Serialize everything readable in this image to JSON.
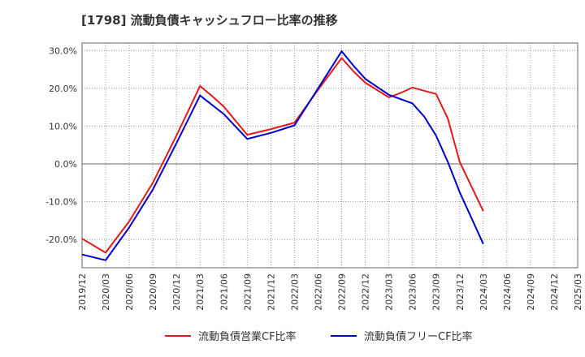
{
  "chart_data": {
    "type": "line",
    "title": "[1798]  流動負債キャッシュフロー比率の推移",
    "xlabel": "",
    "ylabel": "",
    "x": [
      "2019/12",
      "2020/03",
      "2020/06",
      "2020/09",
      "2020/12",
      "2021/03",
      "2021/06",
      "2021/09",
      "2021/12",
      "2022/03",
      "2022/06",
      "2022/09",
      "2022/12",
      "2023/03",
      "2023/06",
      "2023/09",
      "2023/12",
      "2024/03",
      "2024/06",
      "2024/09",
      "2024/12",
      "2025/03"
    ],
    "ylim": [
      -27.5,
      32.0
    ],
    "yticks": [
      30,
      20,
      10,
      0,
      -10,
      -20
    ],
    "ytick_labels": [
      "30.0%",
      "20.0%",
      "10.0%",
      "0.0%",
      "-10.0%",
      "-20.0%"
    ],
    "grid": true,
    "legend_position": "bottom",
    "series": [
      {
        "name": "流動負債営業CF比率",
        "color": "#e31a1c",
        "values": [
          [
            0,
            -19.8
          ],
          [
            1,
            -23.5
          ],
          [
            2,
            -15.2
          ],
          [
            3,
            -5.0
          ],
          [
            4,
            7.5
          ],
          [
            5,
            20.6
          ],
          [
            5.5,
            18.0
          ],
          [
            6,
            15.2
          ],
          [
            7,
            7.7
          ],
          [
            8,
            9.2
          ],
          [
            9,
            10.9
          ],
          [
            10,
            19.6
          ],
          [
            11,
            28.0
          ],
          [
            11.5,
            24.5
          ],
          [
            12,
            21.5
          ],
          [
            13,
            17.6
          ],
          [
            13.5,
            18.8
          ],
          [
            14,
            20.2
          ],
          [
            15,
            18.5
          ],
          [
            15.5,
            12.0
          ],
          [
            16,
            0.5
          ],
          [
            17,
            -12.5
          ]
        ]
      },
      {
        "name": "流動負債フリーCF比率",
        "color": "#0000cc",
        "values": [
          [
            0,
            -24.0
          ],
          [
            1,
            -25.5
          ],
          [
            2,
            -16.8
          ],
          [
            3,
            -6.8
          ],
          [
            4,
            5.5
          ],
          [
            5,
            18.1
          ],
          [
            6,
            13.2
          ],
          [
            7,
            6.6
          ],
          [
            8,
            8.2
          ],
          [
            9,
            10.2
          ],
          [
            10,
            20.0
          ],
          [
            11,
            29.8
          ],
          [
            11.5,
            26.0
          ],
          [
            12,
            22.5
          ],
          [
            13,
            18.3
          ],
          [
            14,
            16.0
          ],
          [
            14.5,
            12.5
          ],
          [
            15,
            7.5
          ],
          [
            15.5,
            0.5
          ],
          [
            16,
            -7.5
          ],
          [
            17,
            -21.2
          ]
        ]
      }
    ]
  }
}
